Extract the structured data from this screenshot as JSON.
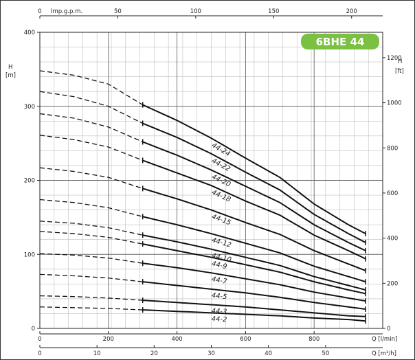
{
  "badge": {
    "text": "6BHE 44",
    "color": "#7ac142"
  },
  "chart_data": {
    "type": "line",
    "grid": true,
    "left_axis": {
      "label_top": "H",
      "label_unit": "[m]",
      "range": [
        0,
        400
      ],
      "ticks": [
        0,
        100,
        200,
        300,
        400
      ]
    },
    "right_axis": {
      "label_top": "H",
      "label_unit": "[ft]",
      "range": [
        0,
        1312.3
      ],
      "ticks": [
        0,
        200,
        400,
        600,
        800,
        1000,
        1200
      ]
    },
    "top_axis": {
      "label": "Imp.g.p.m.",
      "range": [
        0,
        219.96
      ],
      "ticks": [
        0,
        50,
        100,
        150,
        200
      ]
    },
    "bottom_axis_1": {
      "label": "Q [l/min]",
      "range": [
        0,
        1000
      ],
      "ticks": [
        0,
        200,
        400,
        600,
        800
      ]
    },
    "bottom_axis_2": {
      "label": "Q [m³/h]",
      "range": [
        0,
        60
      ],
      "ticks": [
        0,
        10,
        20,
        30,
        40,
        50
      ]
    },
    "operating_range_m3h": [
      18,
      57
    ],
    "series": [
      {
        "name": "44-24",
        "x": [
          0,
          6,
          12,
          18,
          24,
          30,
          36,
          42,
          48,
          54,
          57
        ],
        "y": [
          348,
          342,
          330,
          302,
          281,
          257,
          230,
          204,
          168,
          140,
          128
        ]
      },
      {
        "name": "44-22",
        "x": [
          0,
          6,
          12,
          18,
          24,
          30,
          36,
          42,
          48,
          54,
          57
        ],
        "y": [
          320,
          313,
          300,
          277,
          258,
          236,
          211,
          187,
          154,
          128,
          116
        ]
      },
      {
        "name": "44-20",
        "x": [
          0,
          6,
          12,
          18,
          24,
          30,
          36,
          42,
          48,
          54,
          57
        ],
        "y": [
          290,
          284,
          272,
          252,
          234,
          214,
          192,
          170,
          140,
          116,
          105
        ]
      },
      {
        "name": "44-18",
        "x": [
          0,
          6,
          12,
          18,
          24,
          30,
          36,
          42,
          48,
          54,
          57
        ],
        "y": [
          261,
          255,
          245,
          227,
          210,
          193,
          172,
          153,
          126,
          105,
          94
        ]
      },
      {
        "name": "44-15",
        "x": [
          0,
          6,
          12,
          18,
          24,
          30,
          36,
          42,
          48,
          54,
          57
        ],
        "y": [
          217,
          212,
          204,
          189,
          175,
          160,
          143,
          127,
          105,
          87,
          78
        ]
      },
      {
        "name": "44-12",
        "x": [
          0,
          6,
          12,
          18,
          24,
          30,
          36,
          42,
          48,
          54,
          57
        ],
        "y": [
          174,
          170,
          163,
          151,
          140,
          128,
          115,
          102,
          84,
          70,
          63
        ]
      },
      {
        "name": "44-10",
        "x": [
          0,
          6,
          12,
          18,
          24,
          30,
          36,
          42,
          48,
          54,
          57
        ],
        "y": [
          145,
          142,
          136,
          126,
          117,
          107,
          96,
          85,
          70,
          58,
          52
        ]
      },
      {
        "name": "44-9",
        "x": [
          0,
          6,
          12,
          18,
          24,
          30,
          36,
          42,
          48,
          54,
          57
        ],
        "y": [
          131,
          128,
          123,
          114,
          105,
          96,
          86,
          76,
          63,
          52,
          47
        ]
      },
      {
        "name": "44-7",
        "x": [
          0,
          6,
          12,
          18,
          24,
          30,
          36,
          42,
          48,
          54,
          57
        ],
        "y": [
          101,
          99,
          95,
          88,
          82,
          75,
          67,
          59,
          49,
          41,
          37
        ]
      },
      {
        "name": "44-5",
        "x": [
          0,
          6,
          12,
          18,
          24,
          30,
          36,
          42,
          48,
          54,
          57
        ],
        "y": [
          73,
          71,
          68,
          63,
          58,
          53,
          48,
          42,
          35,
          29,
          26
        ]
      },
      {
        "name": "44-3",
        "x": [
          0,
          6,
          12,
          18,
          24,
          30,
          36,
          42,
          48,
          54,
          57
        ],
        "y": [
          44,
          43,
          41,
          38,
          35,
          32,
          29,
          25,
          21,
          17,
          16
        ]
      },
      {
        "name": "44-2",
        "x": [
          0,
          6,
          12,
          18,
          24,
          30,
          36,
          42,
          48,
          54,
          57
        ],
        "y": [
          29,
          28,
          27,
          25,
          23,
          21,
          19,
          17,
          14,
          12,
          10
        ]
      }
    ],
    "label_positions_m3h": [
      30,
      30,
      30,
      30,
      30,
      30,
      30,
      30,
      30,
      30,
      30,
      30
    ]
  }
}
